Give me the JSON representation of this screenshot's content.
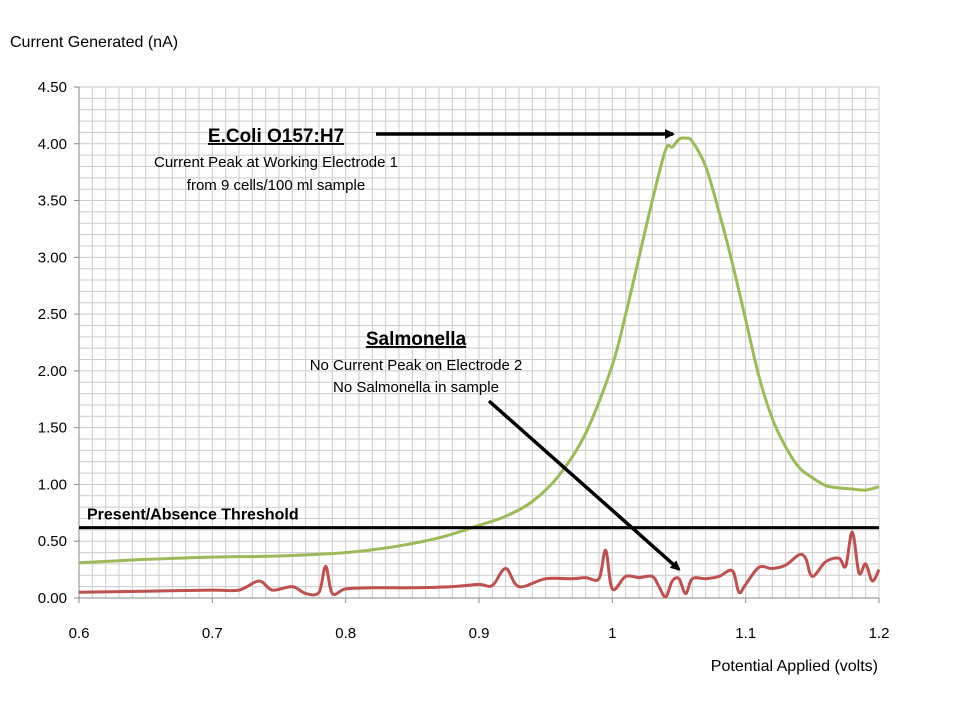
{
  "chart_data": {
    "type": "line",
    "ylabel": "Current Generated (nA)",
    "xlabel": "Potential Applied (volts)",
    "xlim": [
      0.6,
      1.2
    ],
    "ylim": [
      0,
      4.5
    ],
    "x_ticks": [
      "0.6",
      "0.7",
      "0.8",
      "0.9",
      "1",
      "1.1",
      "1.2"
    ],
    "y_ticks": [
      "0.00",
      "0.50",
      "1.00",
      "1.50",
      "2.00",
      "2.50",
      "3.00",
      "3.50",
      "4.00",
      "4.50"
    ],
    "grid": true,
    "series": [
      {
        "color": "#9bbb59",
        "x": [
          0.6,
          0.65,
          0.7,
          0.75,
          0.8,
          0.83,
          0.85,
          0.87,
          0.89,
          0.9,
          0.92,
          0.94,
          0.96,
          0.98,
          1.0,
          1.01,
          1.02,
          1.03,
          1.04,
          1.045,
          1.05,
          1.055,
          1.06,
          1.07,
          1.08,
          1.09,
          1.1,
          1.11,
          1.12,
          1.13,
          1.14,
          1.15,
          1.16,
          1.17,
          1.18,
          1.19,
          1.2
        ],
        "y": [
          0.31,
          0.34,
          0.36,
          0.37,
          0.4,
          0.44,
          0.48,
          0.53,
          0.6,
          0.64,
          0.72,
          0.85,
          1.08,
          1.45,
          2.05,
          2.5,
          3.0,
          3.5,
          3.95,
          3.97,
          4.04,
          4.05,
          4.02,
          3.8,
          3.4,
          2.95,
          2.45,
          1.95,
          1.58,
          1.33,
          1.15,
          1.06,
          0.99,
          0.97,
          0.96,
          0.95,
          0.98
        ]
      },
      {
        "color": "#c0504d",
        "x": [
          0.6,
          0.65,
          0.7,
          0.72,
          0.735,
          0.745,
          0.76,
          0.77,
          0.78,
          0.785,
          0.79,
          0.8,
          0.82,
          0.85,
          0.88,
          0.9,
          0.91,
          0.92,
          0.93,
          0.95,
          0.97,
          0.98,
          0.99,
          0.995,
          1.0,
          1.01,
          1.02,
          1.03,
          1.035,
          1.04,
          1.045,
          1.05,
          1.055,
          1.06,
          1.07,
          1.08,
          1.09,
          1.095,
          1.1,
          1.11,
          1.12,
          1.13,
          1.14,
          1.145,
          1.15,
          1.16,
          1.17,
          1.175,
          1.18,
          1.185,
          1.19,
          1.195,
          1.2
        ],
        "y": [
          0.05,
          0.06,
          0.07,
          0.07,
          0.15,
          0.07,
          0.1,
          0.04,
          0.05,
          0.28,
          0.04,
          0.08,
          0.09,
          0.09,
          0.1,
          0.12,
          0.11,
          0.26,
          0.1,
          0.17,
          0.17,
          0.18,
          0.17,
          0.42,
          0.08,
          0.19,
          0.18,
          0.19,
          0.1,
          0.01,
          0.15,
          0.17,
          0.04,
          0.17,
          0.17,
          0.19,
          0.24,
          0.05,
          0.12,
          0.27,
          0.26,
          0.29,
          0.38,
          0.35,
          0.19,
          0.32,
          0.35,
          0.28,
          0.58,
          0.22,
          0.3,
          0.15,
          0.25
        ]
      }
    ],
    "threshold": {
      "label": "Present/Absence Threshold",
      "y": 0.62
    },
    "annotations": [
      {
        "id": "ecoli",
        "title": "E.Coli O157:H7",
        "lines": [
          "Current Peak at Working Electrode 1",
          "from 9 cells/100 ml sample"
        ],
        "arrow_to": [
          1.05,
          4.04
        ]
      },
      {
        "id": "salmonella",
        "title": "Salmonella",
        "lines": [
          "No Current Peak on Electrode 2",
          "No Salmonella in sample"
        ],
        "arrow_to": [
          1.05,
          0.34
        ]
      }
    ]
  }
}
